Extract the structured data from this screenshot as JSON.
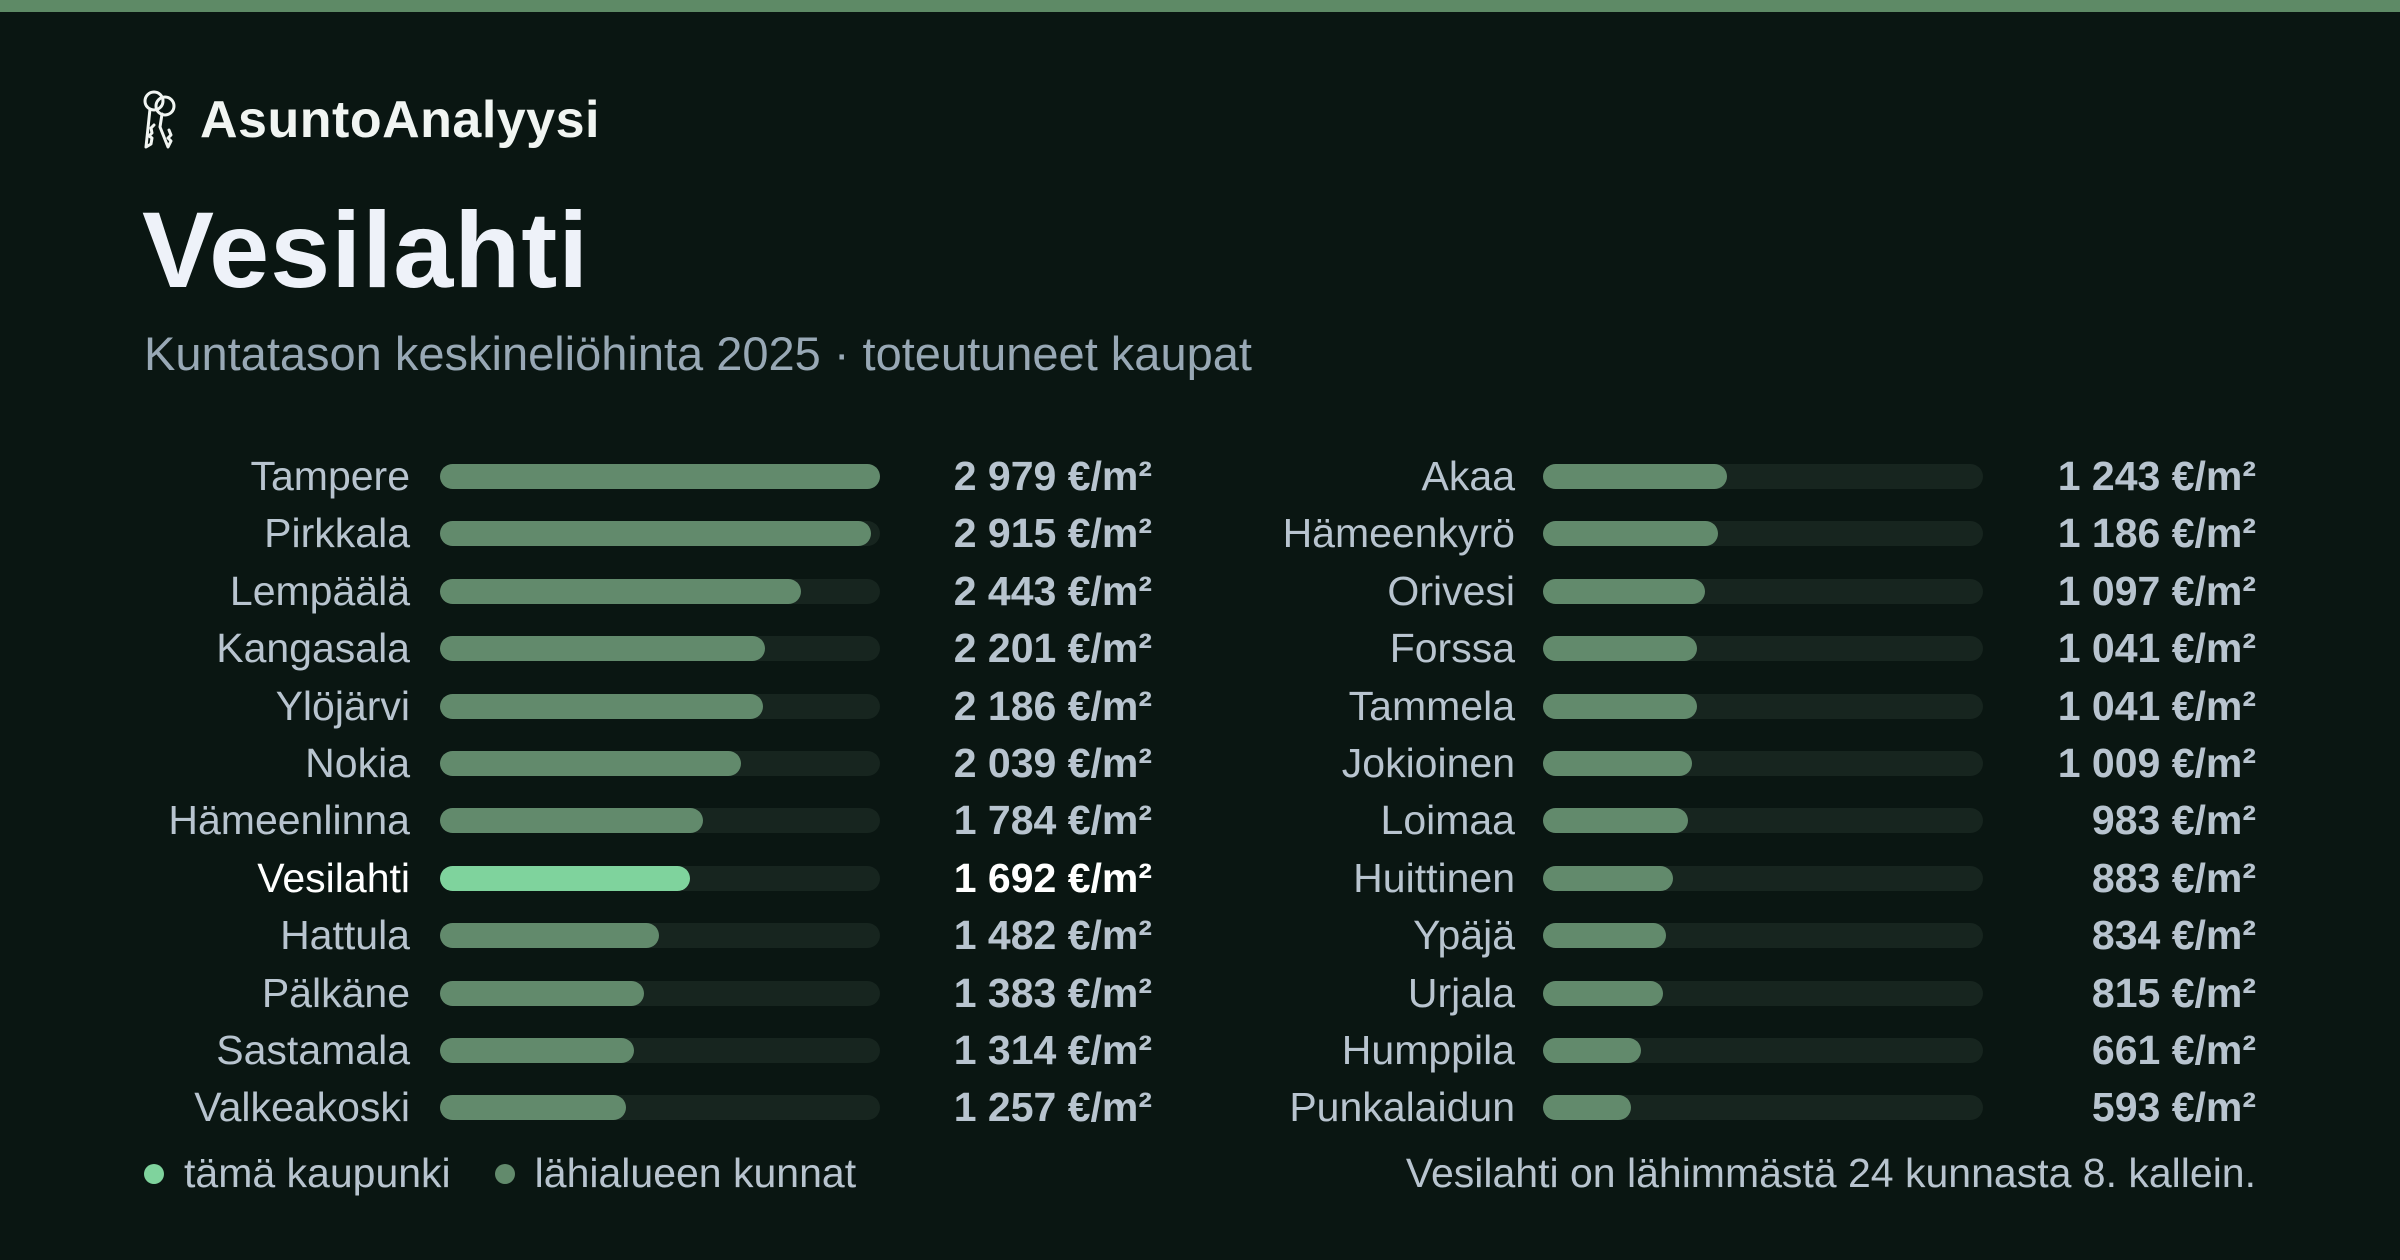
{
  "brand": {
    "name": "AsuntoAnalyysi",
    "icon": "keys-icon"
  },
  "title": "Vesilahti",
  "subtitle": "Kuntatason keskineliöhinta 2025 · toteutuneet kaupat",
  "legend": {
    "this_city": "tämä kaupunki",
    "nearby": "lähialueen kunnat"
  },
  "footnote": "Vesilahti on lähimmästä 24 kunnasta 8. kallein.",
  "colors": {
    "highlight": "#7fd39d",
    "bar": "#628a6c",
    "track": "#17251f",
    "accent_top": "#5e8a66"
  },
  "chart_data": {
    "type": "bar",
    "orientation": "horizontal",
    "unit": "€/m²",
    "max": 2979,
    "highlight": "Vesilahti",
    "columns": [
      {
        "rows": [
          {
            "name": "Tampere",
            "value": 2979,
            "label": "2 979 €/m²"
          },
          {
            "name": "Pirkkala",
            "value": 2915,
            "label": "2 915 €/m²"
          },
          {
            "name": "Lempäälä",
            "value": 2443,
            "label": "2 443 €/m²"
          },
          {
            "name": "Kangasala",
            "value": 2201,
            "label": "2 201 €/m²"
          },
          {
            "name": "Ylöjärvi",
            "value": 2186,
            "label": "2 186 €/m²"
          },
          {
            "name": "Nokia",
            "value": 2039,
            "label": "2 039 €/m²"
          },
          {
            "name": "Hämeenlinna",
            "value": 1784,
            "label": "1 784 €/m²"
          },
          {
            "name": "Vesilahti",
            "value": 1692,
            "label": "1 692 €/m²"
          },
          {
            "name": "Hattula",
            "value": 1482,
            "label": "1 482 €/m²"
          },
          {
            "name": "Pälkäne",
            "value": 1383,
            "label": "1 383 €/m²"
          },
          {
            "name": "Sastamala",
            "value": 1314,
            "label": "1 314 €/m²"
          },
          {
            "name": "Valkeakoski",
            "value": 1257,
            "label": "1 257 €/m²"
          }
        ]
      },
      {
        "rows": [
          {
            "name": "Akaa",
            "value": 1243,
            "label": "1 243 €/m²"
          },
          {
            "name": "Hämeenkyrö",
            "value": 1186,
            "label": "1 186 €/m²"
          },
          {
            "name": "Orivesi",
            "value": 1097,
            "label": "1 097 €/m²"
          },
          {
            "name": "Forssa",
            "value": 1041,
            "label": "1 041 €/m²"
          },
          {
            "name": "Tammela",
            "value": 1041,
            "label": "1 041 €/m²"
          },
          {
            "name": "Jokioinen",
            "value": 1009,
            "label": "1 009 €/m²"
          },
          {
            "name": "Loimaa",
            "value": 983,
            "label": "983 €/m²"
          },
          {
            "name": "Huittinen",
            "value": 883,
            "label": "883 €/m²"
          },
          {
            "name": "Ypäjä",
            "value": 834,
            "label": "834 €/m²"
          },
          {
            "name": "Urjala",
            "value": 815,
            "label": "815 €/m²"
          },
          {
            "name": "Humppila",
            "value": 661,
            "label": "661 €/m²"
          },
          {
            "name": "Punkalaidun",
            "value": 593,
            "label": "593 €/m²"
          }
        ]
      }
    ]
  }
}
